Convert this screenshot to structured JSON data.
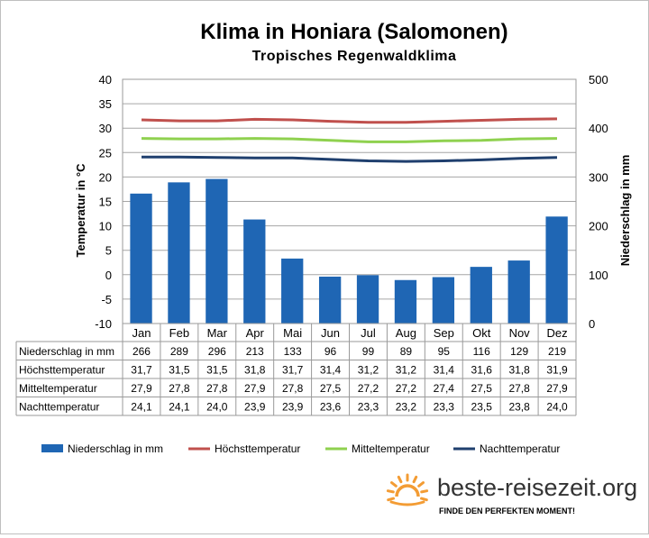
{
  "chart_data": {
    "type": "bar",
    "title": "Klima in Honiara (Salomonen)",
    "subtitle": "Tropisches Regenwaldklima",
    "ylabel_left": "Temperatur in °C",
    "ylabel_right": "Niederschlag in mm",
    "ylim_left": [
      -10,
      40
    ],
    "yticks_left": [
      "40",
      "35",
      "30",
      "25",
      "20",
      "15",
      "10",
      "5",
      "0",
      "-5",
      "-10"
    ],
    "ylim_right": [
      0,
      500
    ],
    "yticks_right": [
      "500",
      "400",
      "300",
      "200",
      "100",
      "0"
    ],
    "grid": true,
    "legend_position": "bottom",
    "categories": [
      "Jan",
      "Feb",
      "Mar",
      "Apr",
      "Mai",
      "Jun",
      "Jul",
      "Aug",
      "Sep",
      "Okt",
      "Nov",
      "Dez"
    ],
    "series": [
      {
        "name": "Niederschlag in mm",
        "type": "bar",
        "axis": "right",
        "color": "#1f66b4",
        "values": [
          266,
          289,
          296,
          213,
          133,
          96,
          99,
          89,
          95,
          116,
          129,
          219
        ],
        "labels": [
          "266",
          "289",
          "296",
          "213",
          "133",
          "96",
          "99",
          "89",
          "95",
          "116",
          "129",
          "219"
        ]
      },
      {
        "name": "Höchsttemperatur",
        "type": "line",
        "axis": "left",
        "color": "#c0504d",
        "values": [
          31.7,
          31.5,
          31.5,
          31.8,
          31.7,
          31.4,
          31.2,
          31.2,
          31.4,
          31.6,
          31.8,
          31.9
        ],
        "labels": [
          "31,7",
          "31,5",
          "31,5",
          "31,8",
          "31,7",
          "31,4",
          "31,2",
          "31,2",
          "31,4",
          "31,6",
          "31,8",
          "31,9"
        ]
      },
      {
        "name": "Mitteltemperatur",
        "type": "line",
        "axis": "left",
        "color": "#8fd14f",
        "values": [
          27.9,
          27.8,
          27.8,
          27.9,
          27.8,
          27.5,
          27.2,
          27.2,
          27.4,
          27.5,
          27.8,
          27.9
        ],
        "labels": [
          "27,9",
          "27,8",
          "27,8",
          "27,9",
          "27,8",
          "27,5",
          "27,2",
          "27,2",
          "27,4",
          "27,5",
          "27,8",
          "27,9"
        ]
      },
      {
        "name": "Nachttemperatur",
        "type": "line",
        "axis": "left",
        "color": "#1f3f6e",
        "values": [
          24.1,
          24.1,
          24.0,
          23.9,
          23.9,
          23.6,
          23.3,
          23.2,
          23.3,
          23.5,
          23.8,
          24.0
        ],
        "labels": [
          "24,1",
          "24,1",
          "24,0",
          "23,9",
          "23,9",
          "23,6",
          "23,3",
          "23,2",
          "23,3",
          "23,5",
          "23,8",
          "24,0"
        ]
      }
    ]
  },
  "branding": {
    "name": "beste-reisezeit.org",
    "slogan": "FINDE DEN PERFEKTEN MOMENT!",
    "icon": "sun-icon",
    "icon_color": "#f39c34"
  }
}
